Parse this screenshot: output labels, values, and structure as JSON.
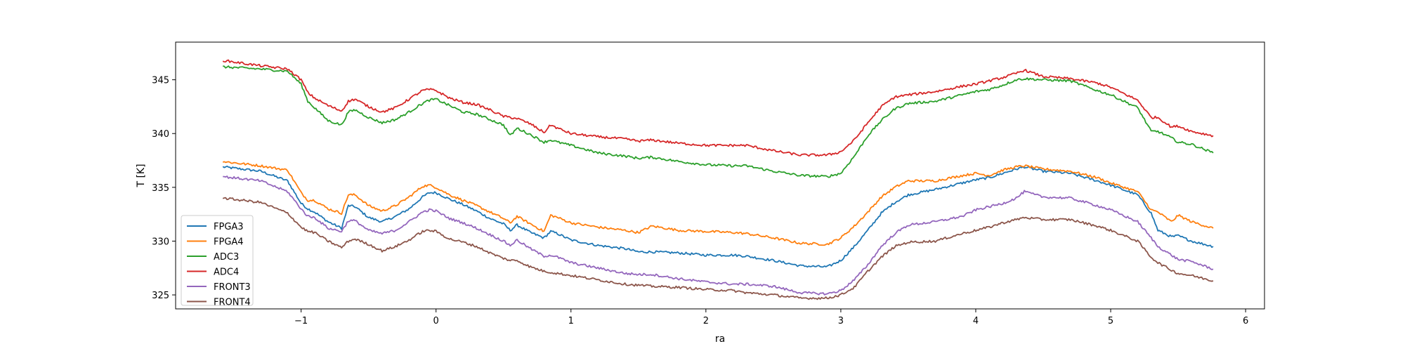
{
  "chart_data": {
    "type": "line",
    "xlabel": "ra",
    "ylabel": "T [K]",
    "xlim": [
      -1.93,
      6.14
    ],
    "ylim": [
      323.7,
      348.5
    ],
    "xticks": [
      -1,
      0,
      1,
      2,
      3,
      4,
      5,
      6
    ],
    "xtick_labels": [
      "−1",
      "0",
      "1",
      "2",
      "3",
      "4",
      "5",
      "6"
    ],
    "yticks": [
      325,
      330,
      335,
      340,
      345
    ],
    "ytick_labels": [
      "325",
      "330",
      "335",
      "340",
      "345"
    ],
    "grid": false,
    "legend_position": "lower-left",
    "series": [
      {
        "name": "FPGA3",
        "color": "#1f77b4",
        "x": [
          -1.58,
          -1.3,
          -1.1,
          -1.0,
          -0.95,
          -0.9,
          -0.8,
          -0.7,
          -0.65,
          -0.6,
          -0.5,
          -0.4,
          -0.3,
          -0.2,
          -0.1,
          -0.05,
          0.0,
          0.1,
          0.2,
          0.3,
          0.4,
          0.5,
          0.55,
          0.6,
          0.7,
          0.8,
          0.85,
          0.9,
          1.0,
          1.2,
          1.4,
          1.5,
          1.6,
          1.8,
          2.0,
          2.2,
          2.3,
          2.5,
          2.7,
          2.9,
          3.0,
          3.1,
          3.2,
          3.3,
          3.4,
          3.5,
          3.7,
          3.9,
          4.0,
          4.1,
          4.2,
          4.3,
          4.36,
          4.5,
          4.7,
          4.9,
          5.0,
          5.2,
          5.3,
          5.35,
          5.45,
          5.5,
          5.6,
          5.76
        ],
        "y": [
          336.9,
          336.5,
          335.6,
          333.5,
          333.0,
          332.7,
          331.8,
          331.2,
          333.3,
          333.2,
          332.2,
          331.8,
          332.3,
          333.0,
          334.1,
          334.5,
          334.5,
          333.9,
          333.4,
          332.8,
          332.1,
          331.6,
          331.0,
          331.5,
          330.8,
          330.3,
          330.9,
          330.7,
          330.1,
          329.6,
          329.3,
          329.0,
          329.0,
          328.9,
          328.7,
          328.7,
          328.6,
          328.2,
          327.7,
          327.6,
          328.2,
          329.5,
          331.0,
          332.6,
          333.6,
          334.3,
          334.8,
          335.4,
          335.7,
          335.9,
          336.3,
          336.7,
          336.9,
          336.5,
          336.3,
          335.6,
          335.2,
          334.3,
          332.6,
          331.0,
          330.4,
          330.5,
          330.0,
          329.5
        ]
      },
      {
        "name": "FPGA4",
        "color": "#ff7f0e",
        "x": [
          -1.58,
          -1.3,
          -1.1,
          -1.0,
          -0.95,
          -0.9,
          -0.8,
          -0.7,
          -0.65,
          -0.6,
          -0.5,
          -0.4,
          -0.3,
          -0.2,
          -0.1,
          -0.05,
          0.0,
          0.1,
          0.2,
          0.3,
          0.4,
          0.5,
          0.55,
          0.6,
          0.7,
          0.8,
          0.85,
          0.9,
          1.0,
          1.2,
          1.4,
          1.5,
          1.6,
          1.8,
          2.0,
          2.2,
          2.3,
          2.5,
          2.7,
          2.9,
          3.0,
          3.1,
          3.2,
          3.3,
          3.4,
          3.5,
          3.7,
          3.9,
          4.0,
          4.1,
          4.2,
          4.3,
          4.36,
          4.5,
          4.7,
          4.9,
          5.0,
          5.2,
          5.3,
          5.35,
          5.45,
          5.5,
          5.6,
          5.76
        ],
        "y": [
          337.4,
          337.0,
          336.6,
          334.5,
          333.8,
          333.8,
          333.0,
          332.6,
          334.3,
          334.3,
          333.3,
          332.8,
          333.3,
          334.1,
          335.1,
          335.2,
          335.0,
          334.3,
          333.8,
          333.3,
          332.7,
          332.1,
          331.7,
          332.3,
          331.6,
          330.9,
          332.4,
          332.2,
          331.7,
          331.3,
          331.0,
          330.8,
          331.4,
          331.0,
          330.9,
          330.8,
          330.7,
          330.3,
          329.8,
          329.7,
          330.3,
          331.4,
          332.7,
          334.1,
          335.0,
          335.6,
          335.6,
          336.1,
          336.3,
          336.1,
          336.6,
          336.9,
          337.0,
          336.7,
          336.5,
          335.9,
          335.4,
          334.6,
          332.9,
          332.7,
          331.8,
          332.4,
          331.8,
          331.2
        ]
      },
      {
        "name": "ADC3",
        "color": "#2ca02c",
        "x": [
          -1.58,
          -1.3,
          -1.1,
          -1.0,
          -0.95,
          -0.9,
          -0.8,
          -0.7,
          -0.65,
          -0.6,
          -0.5,
          -0.4,
          -0.3,
          -0.2,
          -0.1,
          -0.05,
          0.0,
          0.1,
          0.2,
          0.3,
          0.4,
          0.5,
          0.55,
          0.6,
          0.7,
          0.8,
          0.85,
          0.9,
          1.0,
          1.2,
          1.4,
          1.5,
          1.6,
          1.8,
          2.0,
          2.2,
          2.3,
          2.5,
          2.7,
          2.9,
          3.0,
          3.1,
          3.2,
          3.3,
          3.4,
          3.5,
          3.7,
          3.9,
          4.0,
          4.1,
          4.2,
          4.3,
          4.36,
          4.5,
          4.7,
          4.9,
          5.0,
          5.2,
          5.3,
          5.35,
          5.45,
          5.5,
          5.6,
          5.76
        ],
        "y": [
          346.2,
          346.0,
          345.8,
          344.6,
          343.0,
          342.4,
          341.2,
          340.8,
          342.0,
          342.2,
          341.5,
          341.0,
          341.3,
          342.0,
          342.8,
          343.1,
          343.2,
          342.6,
          342.0,
          341.8,
          341.3,
          340.8,
          339.8,
          340.5,
          339.9,
          339.2,
          339.4,
          339.2,
          338.9,
          338.2,
          337.9,
          337.7,
          337.8,
          337.4,
          337.1,
          337.0,
          337.0,
          336.5,
          336.1,
          336.0,
          336.3,
          337.9,
          339.8,
          341.2,
          342.3,
          342.8,
          343.0,
          343.6,
          343.9,
          344.1,
          344.5,
          345.0,
          345.1,
          345.0,
          344.9,
          344.0,
          343.6,
          342.4,
          340.2,
          340.2,
          339.6,
          339.2,
          339.0,
          338.2
        ]
      },
      {
        "name": "ADC4",
        "color": "#d62728",
        "x": [
          -1.58,
          -1.3,
          -1.1,
          -1.0,
          -0.95,
          -0.9,
          -0.8,
          -0.7,
          -0.65,
          -0.6,
          -0.5,
          -0.4,
          -0.3,
          -0.2,
          -0.1,
          -0.05,
          0.0,
          0.1,
          0.2,
          0.3,
          0.4,
          0.5,
          0.55,
          0.6,
          0.7,
          0.8,
          0.85,
          0.9,
          1.0,
          1.2,
          1.4,
          1.5,
          1.6,
          1.8,
          2.0,
          2.2,
          2.3,
          2.5,
          2.7,
          2.9,
          3.0,
          3.1,
          3.2,
          3.3,
          3.4,
          3.5,
          3.7,
          3.9,
          4.0,
          4.1,
          4.2,
          4.3,
          4.36,
          4.5,
          4.7,
          4.9,
          5.0,
          5.2,
          5.3,
          5.35,
          5.45,
          5.5,
          5.6,
          5.76
        ],
        "y": [
          346.8,
          346.3,
          346.0,
          345.0,
          343.8,
          343.3,
          342.6,
          342.1,
          343.0,
          343.2,
          342.5,
          342.0,
          342.4,
          343.2,
          344.0,
          344.1,
          344.0,
          343.3,
          342.9,
          342.7,
          342.2,
          341.6,
          341.5,
          341.4,
          340.9,
          340.1,
          340.8,
          340.5,
          340.0,
          339.7,
          339.5,
          339.3,
          339.4,
          339.1,
          338.9,
          338.9,
          338.9,
          338.4,
          338.0,
          338.0,
          338.3,
          339.4,
          341.0,
          342.5,
          343.4,
          343.6,
          343.9,
          344.4,
          344.6,
          344.9,
          345.2,
          345.6,
          345.9,
          345.3,
          345.1,
          344.7,
          344.3,
          343.1,
          341.5,
          341.5,
          340.6,
          340.7,
          340.2,
          339.8
        ]
      },
      {
        "name": "FRONT3",
        "color": "#9467bd",
        "x": [
          -1.58,
          -1.3,
          -1.1,
          -1.0,
          -0.95,
          -0.9,
          -0.8,
          -0.7,
          -0.65,
          -0.6,
          -0.5,
          -0.4,
          -0.3,
          -0.2,
          -0.1,
          -0.05,
          0.0,
          0.1,
          0.2,
          0.3,
          0.4,
          0.5,
          0.55,
          0.6,
          0.7,
          0.8,
          0.85,
          0.9,
          1.0,
          1.2,
          1.4,
          1.5,
          1.6,
          1.8,
          2.0,
          2.2,
          2.3,
          2.5,
          2.7,
          2.9,
          3.0,
          3.1,
          3.2,
          3.3,
          3.4,
          3.5,
          3.7,
          3.9,
          4.0,
          4.1,
          4.2,
          4.3,
          4.36,
          4.5,
          4.7,
          4.9,
          5.0,
          5.2,
          5.3,
          5.35,
          5.45,
          5.5,
          5.6,
          5.76
        ],
        "y": [
          336.0,
          335.6,
          334.6,
          333.0,
          332.3,
          332.2,
          331.2,
          330.9,
          331.9,
          331.9,
          331.0,
          330.7,
          331.0,
          331.8,
          332.7,
          332.9,
          332.8,
          332.1,
          331.7,
          331.2,
          330.6,
          330.0,
          329.6,
          330.1,
          329.3,
          328.6,
          328.7,
          328.5,
          328.0,
          327.5,
          327.0,
          326.9,
          326.9,
          326.5,
          326.2,
          326.0,
          326.0,
          325.8,
          325.2,
          325.1,
          325.4,
          326.4,
          327.8,
          329.5,
          330.7,
          331.5,
          331.8,
          332.3,
          332.9,
          333.2,
          333.5,
          334.0,
          334.6,
          334.1,
          334.0,
          333.3,
          332.9,
          331.8,
          330.3,
          329.5,
          328.7,
          328.3,
          328.1,
          327.4
        ]
      },
      {
        "name": "FRONT4",
        "color": "#8c564b",
        "x": [
          -1.58,
          -1.3,
          -1.1,
          -1.0,
          -0.95,
          -0.9,
          -0.8,
          -0.7,
          -0.65,
          -0.6,
          -0.5,
          -0.4,
          -0.3,
          -0.2,
          -0.1,
          -0.05,
          0.0,
          0.1,
          0.2,
          0.3,
          0.4,
          0.5,
          0.55,
          0.6,
          0.7,
          0.8,
          0.85,
          0.9,
          1.0,
          1.2,
          1.4,
          1.5,
          1.6,
          1.8,
          2.0,
          2.2,
          2.3,
          2.5,
          2.7,
          2.9,
          3.0,
          3.1,
          3.2,
          3.3,
          3.4,
          3.5,
          3.7,
          3.9,
          4.0,
          4.1,
          4.2,
          4.3,
          4.36,
          4.5,
          4.7,
          4.9,
          5.0,
          5.2,
          5.3,
          5.35,
          5.45,
          5.5,
          5.6,
          5.76
        ],
        "y": [
          334.0,
          333.6,
          332.6,
          331.3,
          330.9,
          330.8,
          330.0,
          329.4,
          330.0,
          330.2,
          329.7,
          329.1,
          329.5,
          330.1,
          330.9,
          331.0,
          330.9,
          330.2,
          329.9,
          329.5,
          328.9,
          328.4,
          328.2,
          328.2,
          327.6,
          327.2,
          327.1,
          327.0,
          326.8,
          326.4,
          326.0,
          325.9,
          325.8,
          325.7,
          325.5,
          325.4,
          325.2,
          325.0,
          324.7,
          324.7,
          325.0,
          325.7,
          327.2,
          328.5,
          329.5,
          329.9,
          330.0,
          330.7,
          331.0,
          331.3,
          331.7,
          332.0,
          332.2,
          332.0,
          332.0,
          331.4,
          331.0,
          330.0,
          328.5,
          328.0,
          327.3,
          327.0,
          326.8,
          326.3
        ]
      }
    ]
  }
}
